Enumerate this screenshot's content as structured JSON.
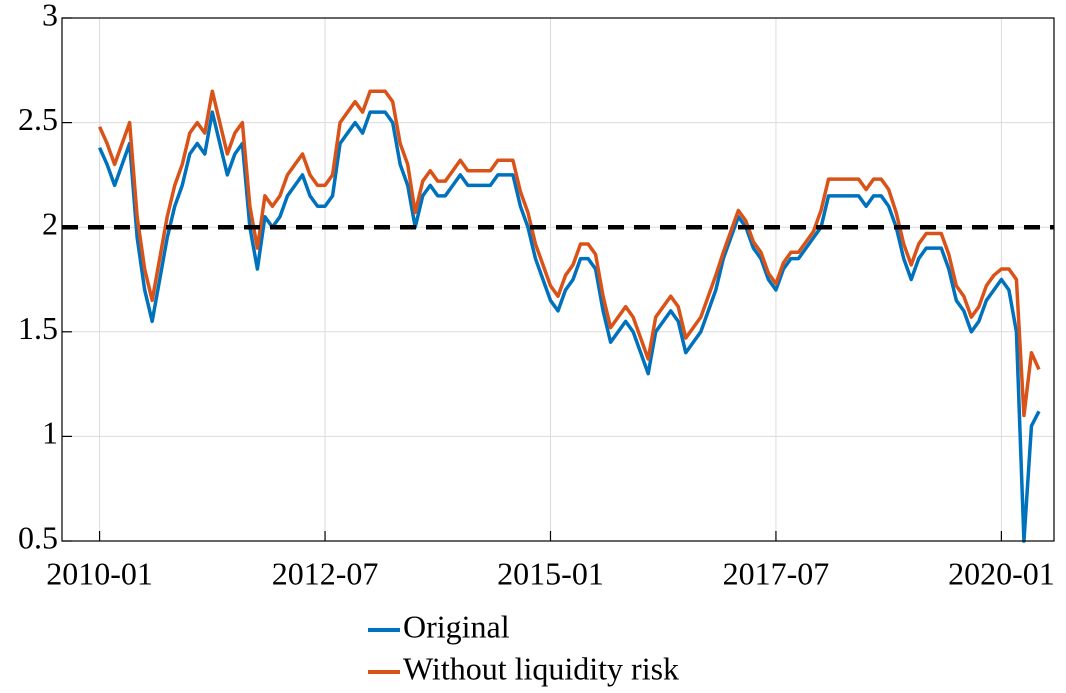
{
  "chart_data": {
    "type": "line",
    "x": [
      "2010-01",
      "2010-02",
      "2010-03",
      "2010-04",
      "2010-05",
      "2010-06",
      "2010-07",
      "2010-08",
      "2010-09",
      "2010-10",
      "2010-11",
      "2010-12",
      "2011-01",
      "2011-02",
      "2011-03",
      "2011-04",
      "2011-05",
      "2011-06",
      "2011-07",
      "2011-08",
      "2011-09",
      "2011-10",
      "2011-11",
      "2011-12",
      "2012-01",
      "2012-02",
      "2012-03",
      "2012-04",
      "2012-05",
      "2012-06",
      "2012-07",
      "2012-08",
      "2012-09",
      "2012-10",
      "2012-11",
      "2012-12",
      "2013-01",
      "2013-02",
      "2013-03",
      "2013-04",
      "2013-05",
      "2013-06",
      "2013-07",
      "2013-08",
      "2013-09",
      "2013-10",
      "2013-11",
      "2013-12",
      "2014-01",
      "2014-02",
      "2014-03",
      "2014-04",
      "2014-05",
      "2014-06",
      "2014-07",
      "2014-08",
      "2014-09",
      "2014-10",
      "2014-11",
      "2014-12",
      "2015-01",
      "2015-02",
      "2015-03",
      "2015-04",
      "2015-05",
      "2015-06",
      "2015-07",
      "2015-08",
      "2015-09",
      "2015-10",
      "2015-11",
      "2015-12",
      "2016-01",
      "2016-02",
      "2016-03",
      "2016-04",
      "2016-05",
      "2016-06",
      "2016-07",
      "2016-08",
      "2016-09",
      "2016-10",
      "2016-11",
      "2016-12",
      "2017-01",
      "2017-02",
      "2017-03",
      "2017-04",
      "2017-05",
      "2017-06",
      "2017-07",
      "2017-08",
      "2017-09",
      "2017-10",
      "2017-11",
      "2017-12",
      "2018-01",
      "2018-02",
      "2018-03",
      "2018-04",
      "2018-05",
      "2018-06",
      "2018-07",
      "2018-08",
      "2018-09",
      "2018-10",
      "2018-11",
      "2018-12",
      "2019-01",
      "2019-02",
      "2019-03",
      "2019-04",
      "2019-05",
      "2019-06",
      "2019-07",
      "2019-08",
      "2019-09",
      "2019-10",
      "2019-11",
      "2019-12",
      "2020-01",
      "2020-02",
      "2020-03",
      "2020-04",
      "2020-05",
      "2020-06"
    ],
    "series": [
      {
        "name": "Original",
        "color": "#0072BD",
        "values": [
          2.38,
          2.3,
          2.2,
          2.3,
          2.4,
          1.95,
          1.7,
          1.55,
          1.75,
          1.95,
          2.1,
          2.2,
          2.35,
          2.4,
          2.35,
          2.55,
          2.4,
          2.25,
          2.35,
          2.4,
          2.0,
          1.8,
          2.05,
          2.0,
          2.05,
          2.15,
          2.2,
          2.25,
          2.15,
          2.1,
          2.1,
          2.15,
          2.4,
          2.45,
          2.5,
          2.45,
          2.55,
          2.55,
          2.55,
          2.5,
          2.3,
          2.2,
          2.0,
          2.15,
          2.2,
          2.15,
          2.15,
          2.2,
          2.25,
          2.2,
          2.2,
          2.2,
          2.2,
          2.25,
          2.25,
          2.25,
          2.1,
          2.0,
          1.85,
          1.75,
          1.65,
          1.6,
          1.7,
          1.75,
          1.85,
          1.85,
          1.8,
          1.6,
          1.45,
          1.5,
          1.55,
          1.5,
          1.4,
          1.3,
          1.5,
          1.55,
          1.6,
          1.55,
          1.4,
          1.45,
          1.5,
          1.6,
          1.7,
          1.85,
          1.95,
          2.05,
          2.0,
          1.9,
          1.85,
          1.75,
          1.7,
          1.8,
          1.85,
          1.85,
          1.9,
          1.95,
          2.0,
          2.15,
          2.15,
          2.15,
          2.15,
          2.15,
          2.1,
          2.15,
          2.15,
          2.1,
          2.0,
          1.85,
          1.75,
          1.85,
          1.9,
          1.9,
          1.9,
          1.8,
          1.65,
          1.6,
          1.5,
          1.55,
          1.65,
          1.7,
          1.75,
          1.7,
          1.5,
          0.5,
          1.05,
          1.12
        ]
      },
      {
        "name": "Without liquidity risk",
        "color": "#D95319",
        "values": [
          2.48,
          2.4,
          2.3,
          2.4,
          2.5,
          2.05,
          1.8,
          1.65,
          1.85,
          2.05,
          2.2,
          2.3,
          2.45,
          2.5,
          2.45,
          2.65,
          2.5,
          2.35,
          2.45,
          2.5,
          2.1,
          1.9,
          2.15,
          2.1,
          2.15,
          2.25,
          2.3,
          2.35,
          2.25,
          2.2,
          2.2,
          2.25,
          2.5,
          2.55,
          2.6,
          2.55,
          2.65,
          2.65,
          2.65,
          2.6,
          2.4,
          2.3,
          2.07,
          2.22,
          2.27,
          2.22,
          2.22,
          2.27,
          2.32,
          2.27,
          2.27,
          2.27,
          2.27,
          2.32,
          2.32,
          2.32,
          2.17,
          2.07,
          1.92,
          1.82,
          1.72,
          1.67,
          1.77,
          1.82,
          1.92,
          1.92,
          1.87,
          1.67,
          1.52,
          1.57,
          1.62,
          1.57,
          1.47,
          1.37,
          1.57,
          1.62,
          1.67,
          1.62,
          1.47,
          1.52,
          1.57,
          1.67,
          1.77,
          1.88,
          1.98,
          2.08,
          2.03,
          1.93,
          1.88,
          1.78,
          1.73,
          1.83,
          1.88,
          1.88,
          1.93,
          1.98,
          2.08,
          2.23,
          2.23,
          2.23,
          2.23,
          2.23,
          2.18,
          2.23,
          2.23,
          2.18,
          2.07,
          1.92,
          1.82,
          1.92,
          1.97,
          1.97,
          1.97,
          1.87,
          1.72,
          1.67,
          1.57,
          1.62,
          1.72,
          1.77,
          1.8,
          1.8,
          1.75,
          1.1,
          1.4,
          1.32
        ]
      }
    ],
    "xlim": [
      "2009-08",
      "2020-08"
    ],
    "xticks": [
      "2010-01",
      "2012-07",
      "2015-01",
      "2017-07",
      "2020-01"
    ],
    "ylim": [
      0.5,
      3
    ],
    "yticks": [
      0.5,
      1,
      1.5,
      2,
      2.5,
      3
    ],
    "grid": true,
    "hline": {
      "value": 2,
      "color": "#000000"
    },
    "legend": "bottom"
  }
}
